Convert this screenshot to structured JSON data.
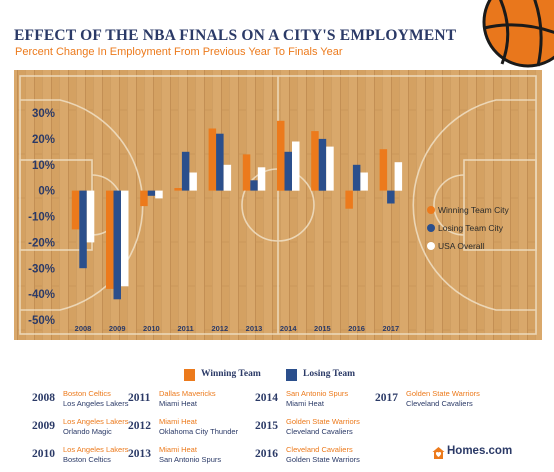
{
  "title": "EFFECT OF THE NBA FINALS ON A CITY'S EMPLOYMENT",
  "subtitle": "Percent Change In Employment From Previous Year To Finals Year",
  "colors": {
    "winning": "#ec7a1c",
    "losing": "#2b4f8c",
    "usa": "#ffffff",
    "navy": "#2b3a67",
    "orange": "#ec7a1c"
  },
  "chart_data": {
    "type": "bar",
    "categories": [
      "2008",
      "2009",
      "2010",
      "2011",
      "2012",
      "2013",
      "2014",
      "2015",
      "2016",
      "2017"
    ],
    "series": [
      {
        "name": "Winning Team City",
        "values": [
          -15,
          -38,
          -6,
          1,
          24,
          14,
          27,
          23,
          -7,
          16
        ]
      },
      {
        "name": "Losing Team City",
        "values": [
          -30,
          -42,
          -2,
          15,
          22,
          4,
          15,
          20,
          10,
          -5
        ]
      },
      {
        "name": "USA Overall",
        "values": [
          -20,
          -37,
          -3,
          7,
          10,
          9,
          19,
          17,
          7,
          11
        ]
      }
    ],
    "ylim": [
      -50,
      30
    ],
    "yticks": [
      "30%",
      "20%",
      "10%",
      "0%",
      "-10%",
      "-20%",
      "-30%",
      "-40%",
      "-50%"
    ],
    "ytick_values": [
      30,
      20,
      10,
      0,
      -10,
      -20,
      -30,
      -40,
      -50
    ],
    "legend": [
      "Winning Team City",
      "Losing Team City",
      "USA Overall"
    ],
    "legend_position": "right",
    "grid": false
  },
  "bottom_legend": {
    "winning": "Winning Team",
    "losing": "Losing Team"
  },
  "finals": [
    {
      "year": "2008",
      "winner": "Boston Celtics",
      "loser": "Los Angeles Lakers"
    },
    {
      "year": "2009",
      "winner": "Los Angeles Lakers",
      "loser": "Orlando Magic"
    },
    {
      "year": "2010",
      "winner": "Los Angeles Lakers",
      "loser": "Boston Celtics"
    },
    {
      "year": "2011",
      "winner": "Dallas Mavericks",
      "loser": "Miami Heat"
    },
    {
      "year": "2012",
      "winner": "Miami Heat",
      "loser": "Oklahoma City Thunder"
    },
    {
      "year": "2013",
      "winner": "Miami Heat",
      "loser": "San Antonio Spurs"
    },
    {
      "year": "2014",
      "winner": "San Antonio Spurs",
      "loser": "Miami Heat"
    },
    {
      "year": "2015",
      "winner": "Golden State Warriors",
      "loser": "Cleveland Cavaliers"
    },
    {
      "year": "2016",
      "winner": "Cleveland Cavaliers",
      "loser": "Golden State Warriors"
    },
    {
      "year": "2017",
      "winner": "Golden State Warriors",
      "loser": "Cleveland Cavaliers"
    }
  ],
  "logo": {
    "text": "Homes.com",
    "icon": "home-heart-icon"
  },
  "decor": {
    "ball_icon": "basketball-icon"
  }
}
